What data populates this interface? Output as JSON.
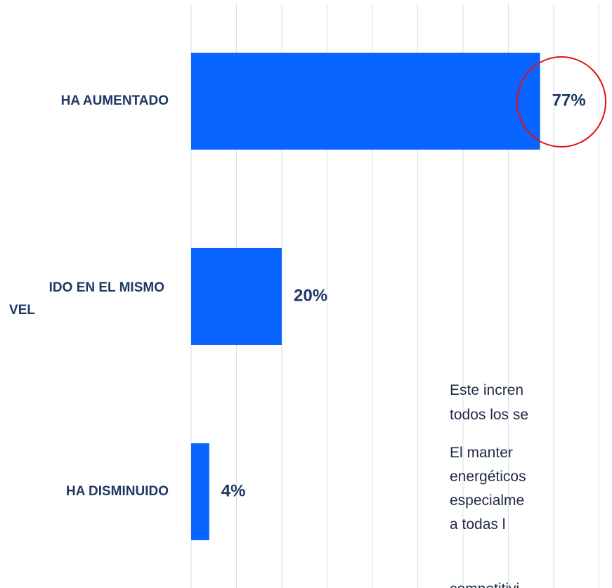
{
  "chart_data": {
    "type": "barh",
    "categories": [
      "HA AUMENTADO",
      [
        "IDO EN EL MISMO",
        "VEL"
      ],
      "HA DISMINUIDO"
    ],
    "values": [
      77,
      20,
      4
    ],
    "value_labels": [
      "77%",
      "20%",
      "4%"
    ],
    "color": "#0a64ff",
    "xlim": [
      0,
      100
    ],
    "xticks": [
      0,
      10,
      20,
      30,
      40,
      50,
      60,
      70,
      80,
      90,
      100
    ],
    "grid": true
  },
  "paragraphs": [
    [
      "Este incren",
      "todos los se"
    ],
    [
      "El manter",
      "energéticos",
      "especialme",
      "a todas l",
      "competitivi"
    ]
  ]
}
